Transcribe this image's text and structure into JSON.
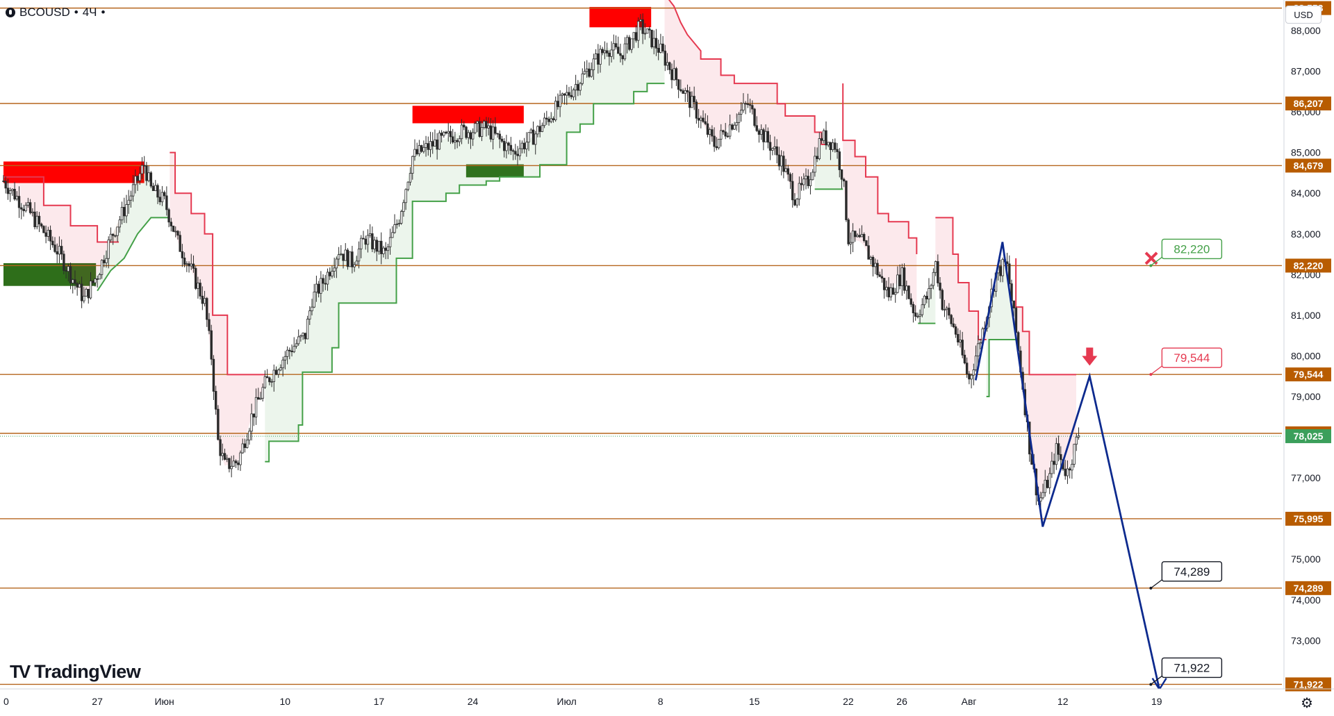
{
  "header": {
    "symbol": "BCOUSD",
    "interval": "4Ч"
  },
  "currency_button": "USD",
  "brand": {
    "text": "TradingView",
    "mark": "TV"
  },
  "settings_icon": "gear-icon",
  "colors": {
    "level_line": "#b5651d",
    "level_badge": "#b85c00",
    "bull": "#43a047",
    "bear": "#e53950",
    "supply_zone": "#ff0000",
    "demand_zone": "#2e6e1a",
    "projection": "#0d2a8e",
    "current_price": "#3b9f5b",
    "candle": "#2a2a2a"
  },
  "chart_data": {
    "type": "candlestick",
    "symbol": "BCOUSD",
    "timeframe": "4Ч",
    "y_axis": {
      "min": 71500,
      "max": 88900,
      "ticks": [
        73000,
        74000,
        75000,
        76000,
        77000,
        78000,
        79000,
        80000,
        81000,
        82000,
        83000,
        84000,
        85000,
        86000,
        87000,
        88000
      ],
      "tick_labels": [
        "73,000",
        "74,000",
        "75,000",
        "76,000",
        "77,000",
        "78,000",
        "79,000",
        "80,000",
        "81,000",
        "82,000",
        "83,000",
        "84,000",
        "85,000",
        "86,000",
        "87,000",
        "88,000"
      ]
    },
    "x_axis": {
      "labels": [
        "0",
        "27",
        "Июн",
        "10",
        "17",
        "24",
        "Июл",
        "8",
        "15",
        "22",
        "26",
        "Авг",
        "12",
        "19"
      ],
      "label_days": [
        -1,
        6,
        11,
        20,
        27,
        34,
        41,
        48,
        55,
        62,
        66,
        71,
        78,
        85
      ]
    },
    "levels": [
      {
        "value": 88553,
        "label": "88,553"
      },
      {
        "value": 86207,
        "label": "86,207"
      },
      {
        "value": 84679,
        "label": "84,679"
      },
      {
        "value": 82220,
        "label": "82,220"
      },
      {
        "value": 79544,
        "label": "79,544"
      },
      {
        "value": 78095,
        "label": "78,095"
      },
      {
        "value": 75995,
        "label": "75,995"
      },
      {
        "value": 74289,
        "label": "74,289"
      },
      {
        "value": 71922,
        "label": "71,922"
      }
    ],
    "current_price": {
      "value": 78025,
      "label": "78,025"
    },
    "supply_zones": [
      {
        "x1": -1,
        "x2": 9.5,
        "y1": 84250,
        "y2": 84780
      },
      {
        "x1": 29.5,
        "x2": 37.8,
        "y1": 85720,
        "y2": 86150
      },
      {
        "x1": 42.7,
        "x2": 47.3,
        "y1": 88080,
        "y2": 88580
      }
    ],
    "demand_zones": [
      {
        "x1": -1,
        "x2": 5.9,
        "y1": 81720,
        "y2": 82280
      },
      {
        "x1": 33.5,
        "x2": 37.8,
        "y1": 84390,
        "y2": 84710
      }
    ],
    "supertrend": [
      {
        "dir": "down",
        "pts": [
          [
            -1,
            84400
          ],
          [
            2,
            84400
          ],
          [
            2,
            83700
          ],
          [
            4,
            83700
          ],
          [
            4,
            83200
          ],
          [
            6,
            83200
          ],
          [
            6,
            82800
          ],
          [
            7.6,
            82800
          ]
        ]
      },
      {
        "dir": "up",
        "pts": [
          [
            6,
            81600
          ],
          [
            7,
            82100
          ],
          [
            8,
            82400
          ],
          [
            9,
            83000
          ],
          [
            10,
            83400
          ],
          [
            11.4,
            83400
          ]
        ]
      },
      {
        "dir": "down",
        "pts": [
          [
            11.4,
            85000
          ],
          [
            11.8,
            85000
          ],
          [
            11.8,
            84000
          ],
          [
            13,
            84000
          ],
          [
            13,
            83500
          ],
          [
            14,
            83500
          ],
          [
            14,
            83000
          ],
          [
            14.6,
            83000
          ],
          [
            14.6,
            81000
          ],
          [
            15.7,
            81000
          ],
          [
            15.7,
            79540
          ],
          [
            18.5,
            79540
          ]
        ]
      },
      {
        "dir": "up",
        "pts": [
          [
            18.5,
            77400
          ],
          [
            18.8,
            77400
          ],
          [
            18.8,
            77900
          ],
          [
            21,
            77900
          ],
          [
            21,
            78300
          ],
          [
            21.3,
            78300
          ],
          [
            21.3,
            79600
          ],
          [
            23.5,
            79600
          ],
          [
            23.5,
            80200
          ],
          [
            24,
            80200
          ],
          [
            24,
            81300
          ],
          [
            28.3,
            81300
          ],
          [
            28.3,
            82400
          ],
          [
            29.5,
            82400
          ],
          [
            29.5,
            83800
          ],
          [
            32,
            83800
          ],
          [
            32,
            84000
          ],
          [
            33,
            84000
          ],
          [
            33,
            84200
          ],
          [
            35,
            84200
          ],
          [
            35,
            84300
          ],
          [
            36,
            84300
          ],
          [
            36,
            84400
          ],
          [
            39,
            84400
          ],
          [
            39,
            84700
          ],
          [
            41,
            84700
          ],
          [
            41,
            85500
          ],
          [
            42,
            85500
          ],
          [
            42,
            85700
          ],
          [
            43,
            85700
          ],
          [
            43,
            86200
          ],
          [
            45,
            86200
          ],
          [
            45,
            86200
          ],
          [
            46,
            86200
          ],
          [
            46,
            86500
          ],
          [
            47,
            86500
          ],
          [
            47,
            86700
          ],
          [
            48.3,
            86700
          ]
        ]
      },
      {
        "dir": "down",
        "pts": [
          [
            48.3,
            88900
          ],
          [
            49,
            88600
          ],
          [
            49.5,
            88200
          ],
          [
            50,
            87900
          ],
          [
            51,
            87500
          ],
          [
            51,
            87300
          ],
          [
            52.5,
            87300
          ],
          [
            52.5,
            86900
          ],
          [
            53.5,
            86900
          ],
          [
            53.5,
            86700
          ],
          [
            56.7,
            86700
          ],
          [
            56.7,
            86200
          ],
          [
            57.3,
            86200
          ],
          [
            57.3,
            85900
          ],
          [
            59.5,
            85900
          ],
          [
            59.5,
            85500
          ],
          [
            60,
            85500
          ],
          [
            60,
            85200
          ],
          [
            61,
            85200
          ]
        ]
      },
      {
        "dir": "up",
        "pts": [
          [
            59.5,
            84100
          ],
          [
            61.6,
            84100
          ]
        ]
      },
      {
        "dir": "down",
        "pts": [
          [
            61.6,
            86700
          ],
          [
            61.6,
            85300
          ],
          [
            62.5,
            85300
          ],
          [
            62.5,
            84900
          ],
          [
            63.3,
            84900
          ],
          [
            63.3,
            84400
          ],
          [
            64.2,
            84400
          ],
          [
            64.2,
            83500
          ],
          [
            65,
            83500
          ],
          [
            65,
            83300
          ],
          [
            66.5,
            83300
          ],
          [
            66.5,
            82900
          ],
          [
            67.1,
            82900
          ],
          [
            67.1,
            82500
          ]
        ]
      },
      {
        "dir": "up",
        "pts": [
          [
            67.2,
            80800
          ],
          [
            68.5,
            80800
          ]
        ]
      },
      {
        "dir": "down",
        "pts": [
          [
            68.5,
            83400
          ],
          [
            69.8,
            83400
          ],
          [
            69.8,
            82500
          ],
          [
            70.2,
            82500
          ],
          [
            70.2,
            81800
          ],
          [
            71,
            81800
          ],
          [
            71,
            81100
          ],
          [
            71.7,
            81100
          ],
          [
            71.7,
            80400
          ],
          [
            72.3,
            80400
          ]
        ]
      },
      {
        "dir": "up",
        "pts": [
          [
            72.3,
            79000
          ],
          [
            72.5,
            79000
          ],
          [
            72.5,
            80400
          ],
          [
            74.5,
            80400
          ],
          [
            74.5,
            80500
          ]
        ]
      },
      {
        "dir": "down",
        "pts": [
          [
            74.5,
            82400
          ],
          [
            74.5,
            81200
          ],
          [
            75,
            81200
          ],
          [
            75,
            80600
          ],
          [
            75.5,
            80600
          ],
          [
            75.5,
            79540
          ],
          [
            79,
            79540
          ]
        ]
      }
    ],
    "projection_path": [
      [
        71.5,
        79400
      ],
      [
        73.5,
        82800
      ],
      [
        76.5,
        75800
      ],
      [
        80,
        79500
      ],
      [
        85.2,
        71800
      ]
    ],
    "callouts": [
      {
        "label": "82,220",
        "value": 82220,
        "day": 85.6,
        "kind": "green"
      },
      {
        "label": "79,544",
        "value": 79544,
        "day": 85.6,
        "kind": "red"
      },
      {
        "label": "74,289",
        "value": 74289,
        "day": 85.6,
        "kind": "black"
      },
      {
        "label": "71,922",
        "value": 71922,
        "day": 85.6,
        "kind": "black"
      }
    ],
    "markers": [
      {
        "type": "cross",
        "day": 84.6,
        "value": 82400
      },
      {
        "type": "down-arrow",
        "day": 80,
        "value": 79760
      }
    ],
    "series": [
      {
        "name": "BCOUSD",
        "control_points": [
          [
            -1,
            84300
          ],
          [
            1,
            83500
          ],
          [
            3,
            82600
          ],
          [
            4,
            82000
          ],
          [
            5,
            81400
          ],
          [
            6,
            82000
          ],
          [
            7,
            82900
          ],
          [
            8,
            83600
          ],
          [
            9.5,
            84700
          ],
          [
            10,
            84100
          ],
          [
            11,
            83800
          ],
          [
            12,
            82800
          ],
          [
            13,
            82100
          ],
          [
            14,
            81300
          ],
          [
            14.5,
            80000
          ],
          [
            15,
            77900
          ],
          [
            15.5,
            77300
          ],
          [
            16.5,
            77400
          ],
          [
            17.5,
            78500
          ],
          [
            18.5,
            79300
          ],
          [
            19.5,
            79800
          ],
          [
            20.5,
            80200
          ],
          [
            21.5,
            80500
          ],
          [
            22,
            81400
          ],
          [
            23,
            81900
          ],
          [
            24,
            82600
          ],
          [
            25,
            82300
          ],
          [
            26,
            82900
          ],
          [
            27.5,
            82500
          ],
          [
            28.5,
            83400
          ],
          [
            29.5,
            84900
          ],
          [
            31,
            85200
          ],
          [
            33,
            85500
          ],
          [
            35,
            85600
          ],
          [
            37,
            85000
          ],
          [
            38.5,
            85400
          ],
          [
            40,
            86000
          ],
          [
            41.5,
            86600
          ],
          [
            43,
            87200
          ],
          [
            44,
            87600
          ],
          [
            45,
            87400
          ],
          [
            46.5,
            88100
          ],
          [
            48,
            87500
          ],
          [
            49,
            86900
          ],
          [
            50.5,
            86100
          ],
          [
            52,
            85200
          ],
          [
            53.5,
            85800
          ],
          [
            54.5,
            86200
          ],
          [
            55.5,
            85500
          ],
          [
            57,
            84800
          ],
          [
            58,
            83900
          ],
          [
            59,
            84300
          ],
          [
            60,
            85400
          ],
          [
            61,
            85200
          ],
          [
            61.6,
            84400
          ],
          [
            62,
            82900
          ],
          [
            63,
            82800
          ],
          [
            64,
            82200
          ],
          [
            65,
            81500
          ],
          [
            66,
            82000
          ],
          [
            67,
            81000
          ],
          [
            68,
            81500
          ],
          [
            68.5,
            82300
          ],
          [
            69,
            81300
          ],
          [
            70,
            80600
          ],
          [
            71,
            79400
          ],
          [
            72,
            80600
          ],
          [
            73,
            82000
          ],
          [
            73.8,
            82300
          ],
          [
            74.5,
            80600
          ],
          [
            75,
            79300
          ],
          [
            75.5,
            77800
          ],
          [
            76.2,
            76400
          ],
          [
            77,
            77000
          ],
          [
            77.5,
            77700
          ],
          [
            78.3,
            77100
          ],
          [
            79.2,
            78100
          ]
        ]
      }
    ]
  }
}
